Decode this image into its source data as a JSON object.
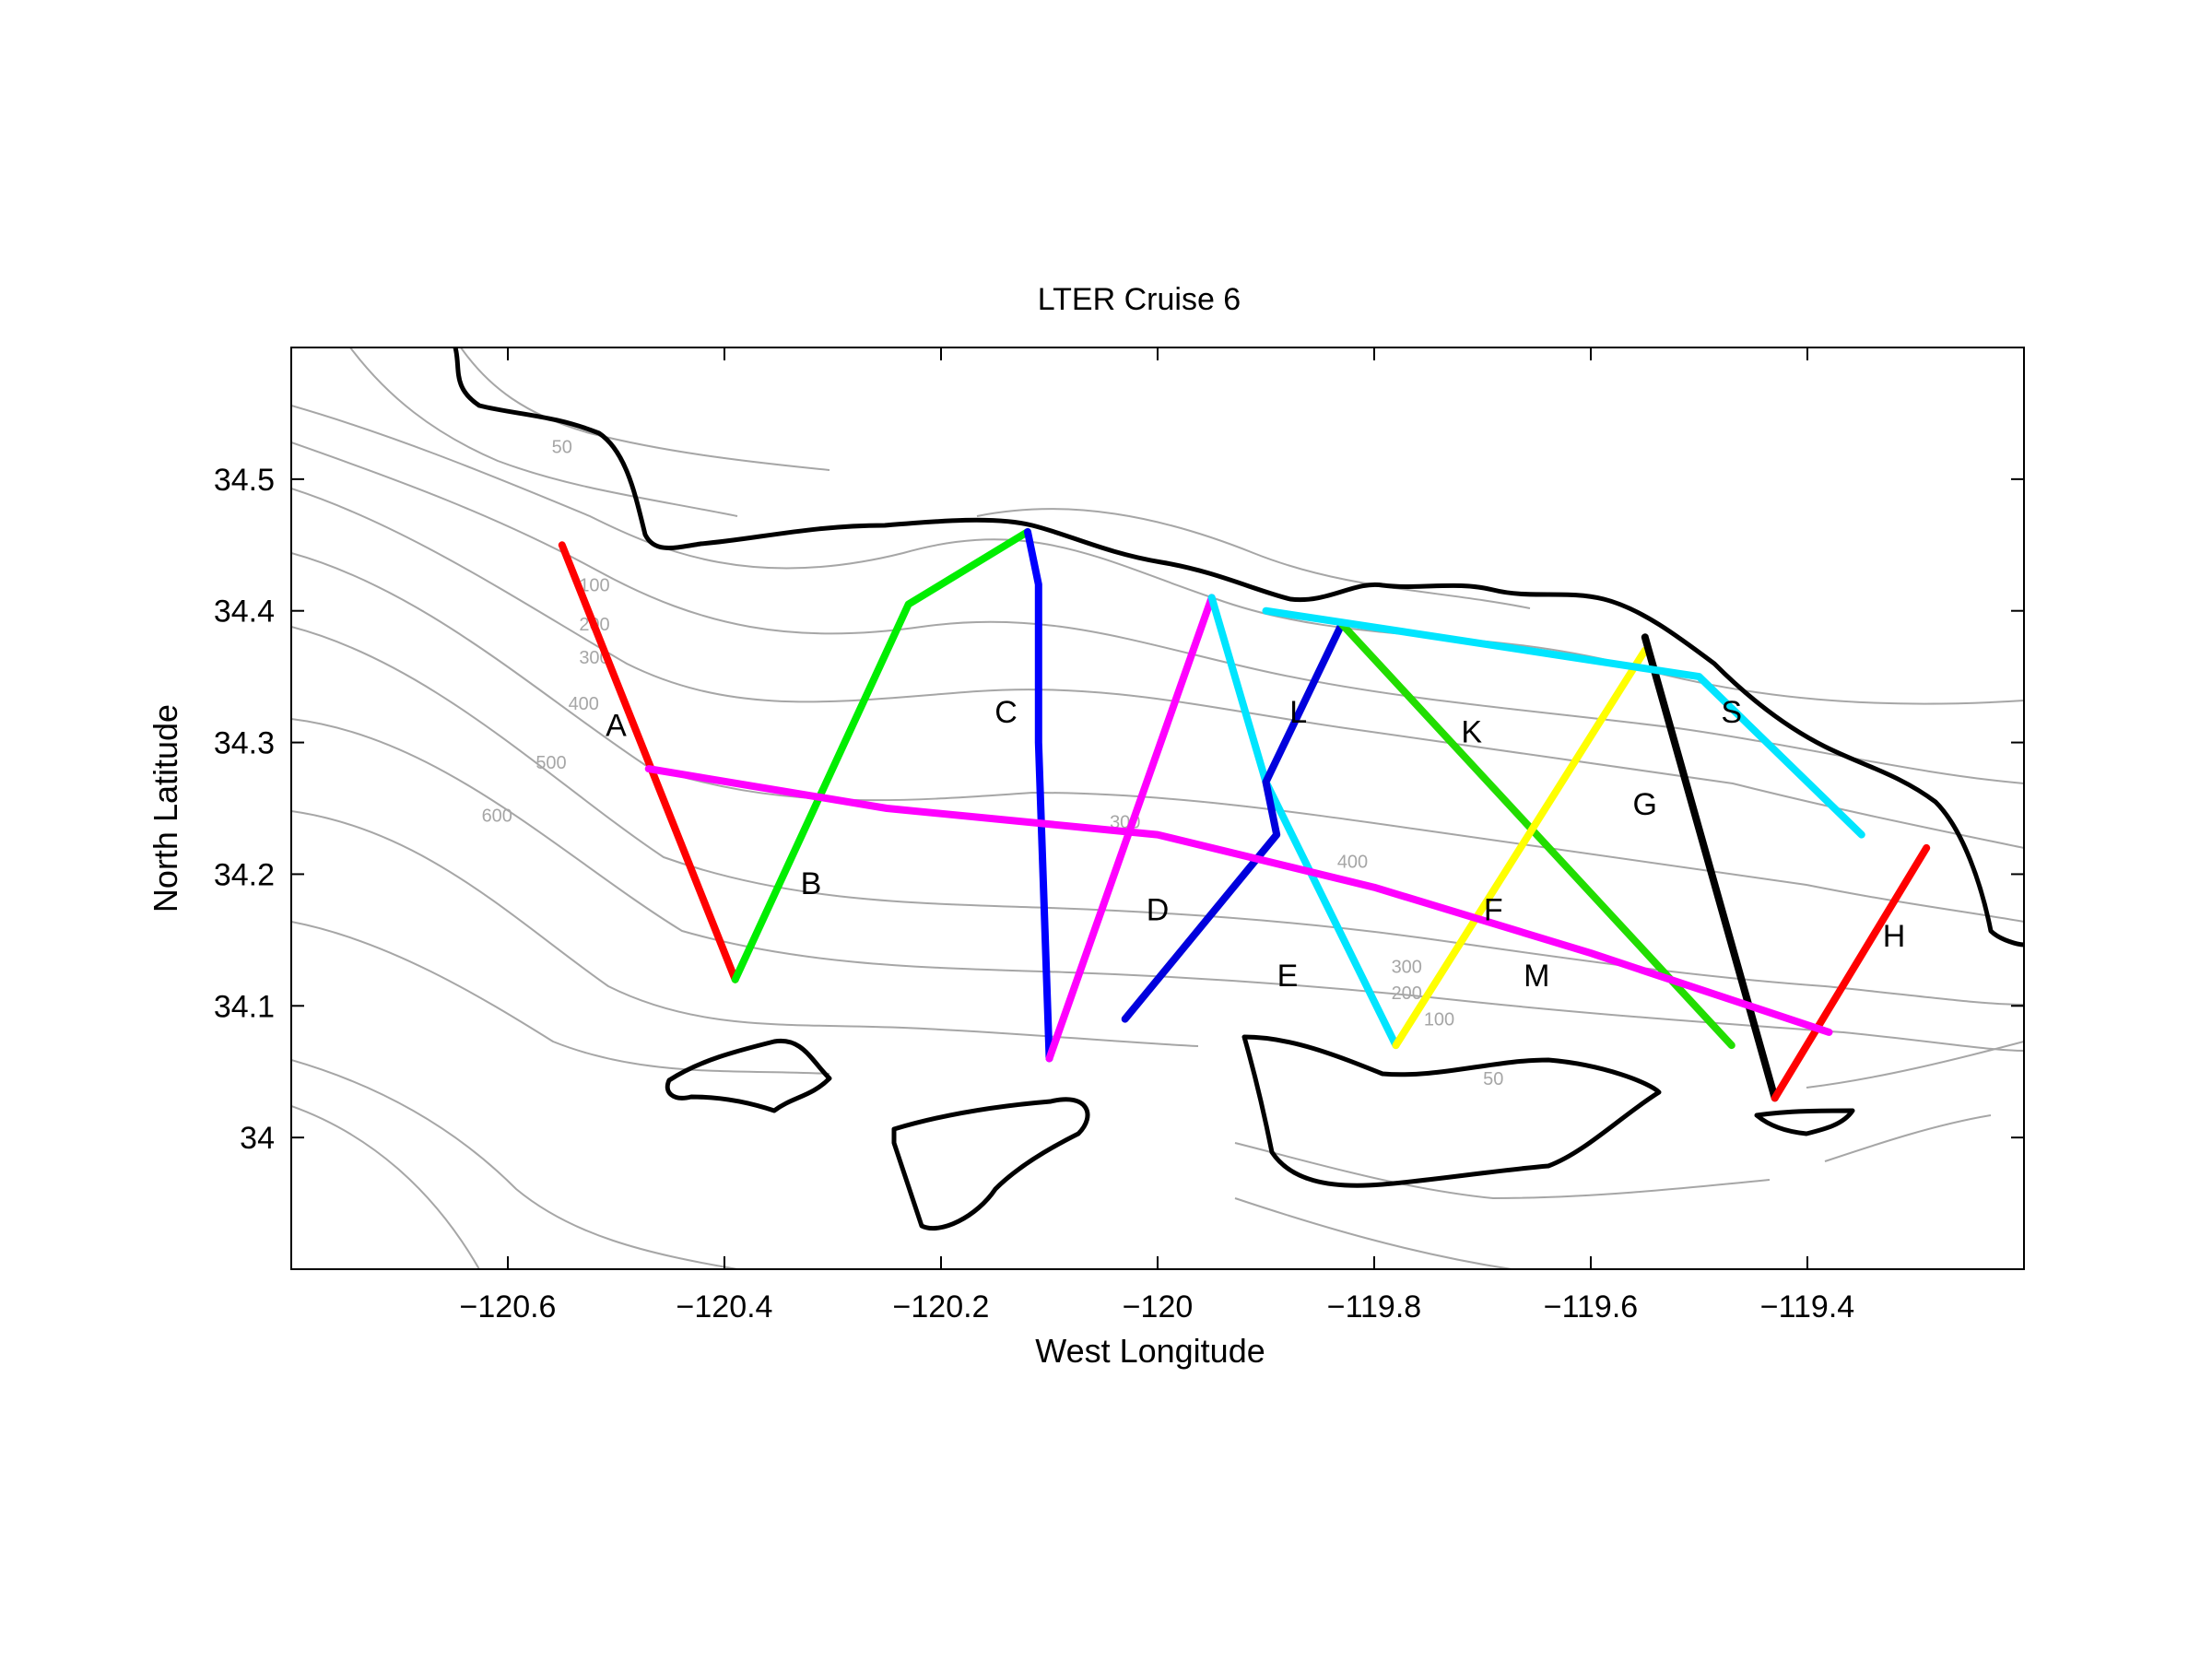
{
  "title": "LTER Cruise 6",
  "xlabel": "West Longitude",
  "ylabel": "North Latitude",
  "axes": {
    "xlim": [
      -120.8,
      -119.2
    ],
    "ylim": [
      33.9,
      34.6
    ],
    "xticks": [
      -120.6,
      -120.4,
      -120.2,
      -120.0,
      -119.8,
      -119.6,
      -119.4
    ],
    "xtick_labels": [
      "−120.6",
      "−120.4",
      "−120.2",
      "−120",
      "−119.8",
      "−119.6",
      "−119.4"
    ],
    "yticks": [
      34.0,
      34.1,
      34.2,
      34.3,
      34.4,
      34.5
    ],
    "ytick_labels": [
      "34",
      "34.1",
      "34.2",
      "34.3",
      "34.4",
      "34.5"
    ]
  },
  "chart_data": {
    "type": "map",
    "title": "LTER Cruise 6",
    "xlabel": "West Longitude",
    "ylabel": "North Latitude",
    "xlim": [
      -120.8,
      -119.2
    ],
    "ylim": [
      33.9,
      34.6
    ],
    "transects": [
      {
        "name": "A",
        "color": "#ff0000",
        "points": [
          [
            -120.55,
            34.45
          ],
          [
            -120.39,
            34.12
          ]
        ],
        "label_at": [
          -120.5,
          34.305
        ]
      },
      {
        "name": "B",
        "color": "#00ee00",
        "points": [
          [
            -120.39,
            34.12
          ],
          [
            -120.23,
            34.405
          ],
          [
            -120.12,
            34.46
          ]
        ],
        "label_at": [
          -120.32,
          34.185
        ]
      },
      {
        "name": "C",
        "color": "#0000ff",
        "points": [
          [
            -120.12,
            34.46
          ],
          [
            -120.11,
            34.42
          ],
          [
            -120.11,
            34.3
          ],
          [
            -120.1,
            34.06
          ]
        ],
        "label_at": [
          -120.14,
          34.315
        ]
      },
      {
        "name": "D",
        "color": "#ff00ff",
        "points": [
          [
            -120.1,
            34.06
          ],
          [
            -119.95,
            34.41
          ]
        ],
        "label_at": [
          -120.0,
          34.165
        ]
      },
      {
        "name": "E",
        "color": "#00e5ff",
        "points": [
          [
            -119.95,
            34.41
          ],
          [
            -119.9,
            34.27
          ],
          [
            -119.78,
            34.07
          ]
        ],
        "label_at": [
          -119.88,
          34.115
        ]
      },
      {
        "name": "L",
        "color": "#0000dd",
        "points": [
          [
            -120.03,
            34.09
          ],
          [
            -119.89,
            34.23
          ],
          [
            -119.9,
            34.27
          ],
          [
            -119.83,
            34.39
          ]
        ],
        "label_at": [
          -119.87,
          34.315
        ]
      },
      {
        "name": "K",
        "color": "#22dd00",
        "points": [
          [
            -119.83,
            34.39
          ],
          [
            -119.47,
            34.07
          ]
        ],
        "label_at": [
          -119.71,
          34.3
        ]
      },
      {
        "name": "F",
        "color": "#ffff00",
        "points": [
          [
            -119.78,
            34.07
          ],
          [
            -119.55,
            34.37
          ]
        ],
        "label_at": [
          -119.69,
          34.165
        ]
      },
      {
        "name": "G",
        "color": "#000000",
        "points": [
          [
            -119.55,
            34.38
          ],
          [
            -119.43,
            34.03
          ]
        ],
        "label_at": [
          -119.55,
          34.245
        ]
      },
      {
        "name": "S",
        "color": "#00e5ff",
        "points": [
          [
            -119.9,
            34.4
          ],
          [
            -119.5,
            34.35
          ],
          [
            -119.35,
            34.23
          ]
        ],
        "label_at": [
          -119.47,
          34.315
        ]
      },
      {
        "name": "H",
        "color": "#ff0000",
        "points": [
          [
            -119.43,
            34.03
          ],
          [
            -119.29,
            34.22
          ]
        ],
        "label_at": [
          -119.32,
          34.145
        ]
      },
      {
        "name": "M",
        "color": "#ff00ff",
        "points": [
          [
            -120.47,
            34.28
          ],
          [
            -120.25,
            34.25
          ],
          [
            -120.0,
            34.23
          ],
          [
            -119.8,
            34.19
          ],
          [
            -119.6,
            34.14
          ],
          [
            -119.38,
            34.08
          ]
        ],
        "label_at": [
          -119.65,
          34.115
        ]
      }
    ],
    "contour_labels": [
      {
        "text": "50",
        "at": [
          -120.55,
          34.52
        ]
      },
      {
        "text": "100",
        "at": [
          -120.52,
          34.415
        ]
      },
      {
        "text": "200",
        "at": [
          -120.52,
          34.385
        ]
      },
      {
        "text": "300",
        "at": [
          -120.52,
          34.36
        ]
      },
      {
        "text": "400",
        "at": [
          -120.53,
          34.325
        ]
      },
      {
        "text": "500",
        "at": [
          -120.56,
          34.28
        ]
      },
      {
        "text": "600",
        "at": [
          -120.61,
          34.24
        ]
      },
      {
        "text": "300",
        "at": [
          -120.03,
          34.235
        ]
      },
      {
        "text": "400",
        "at": [
          -119.82,
          34.205
        ]
      },
      {
        "text": "300",
        "at": [
          -119.77,
          34.125
        ]
      },
      {
        "text": "200",
        "at": [
          -119.77,
          34.105
        ]
      },
      {
        "text": "100",
        "at": [
          -119.74,
          34.085
        ]
      },
      {
        "text": "50",
        "at": [
          -119.69,
          34.04
        ]
      }
    ]
  }
}
